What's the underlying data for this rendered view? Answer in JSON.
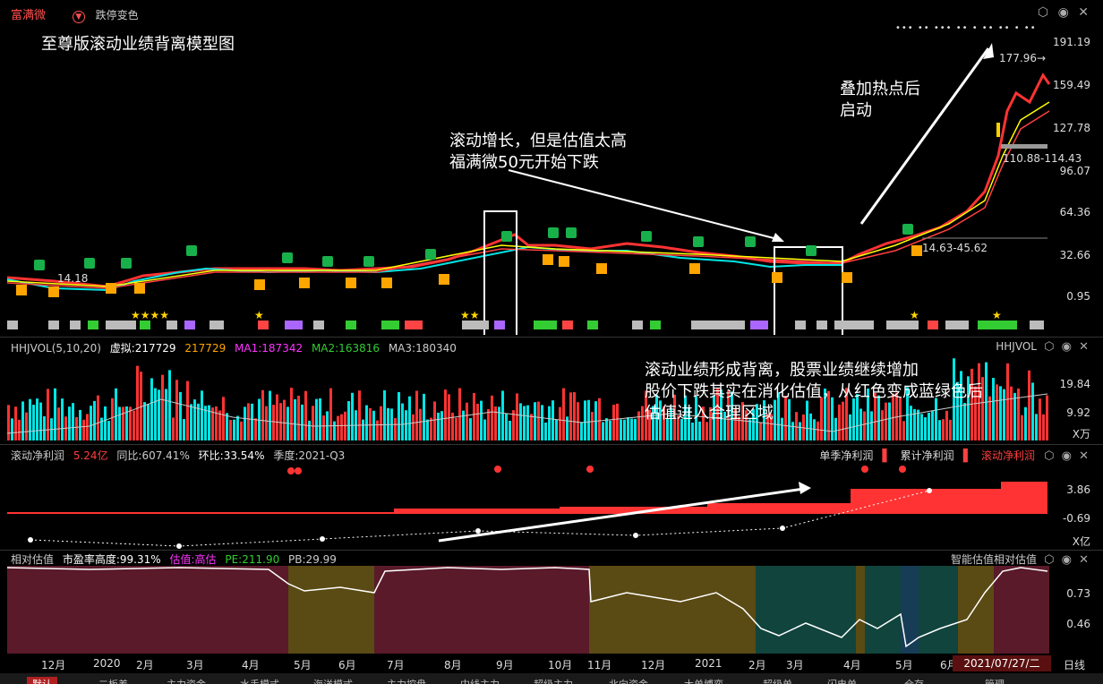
{
  "header": {
    "stock_name": "富满微",
    "tab_label": "跌停变色",
    "right_axis": [
      "191.19",
      "159.49",
      "127.78",
      "96.07",
      "64.36",
      "32.66",
      "0.95"
    ],
    "price_markers": {
      "high": "177.96→",
      "range_high": "110.88-114.43",
      "range_low": "14.63-45.62",
      "low_label": "14.18"
    }
  },
  "annotations": {
    "title": "至尊版滚动业绩背离模型图",
    "a1_line1": "滚动增长，但是估值太高",
    "a1_line2": "福满微50元开始下跌",
    "a2_line1": "叠加热点后",
    "a2_line2": "启动",
    "a3_line1": "滚动业绩形成背离，股票业绩继续增加",
    "a3_line2": "股价下跌其实在消化估值，从红色变成蓝绿色后",
    "a3_line3": "估值进入合理区域"
  },
  "vol": {
    "name": "HHJVOL(5,10,20)",
    "virtual_label": "虚拟:217729",
    "v2": "217729",
    "ma1": "MA1:187342",
    "ma2": "MA2:163816",
    "ma3": "MA3:180340",
    "right_name": "HHJVOL",
    "axis": [
      "19.84",
      "9.92",
      "X万"
    ]
  },
  "profit": {
    "name": "滚动净利润",
    "value": "5.24亿",
    "yoy": "同比:607.41%",
    "qoq": "环比:33.54%",
    "quarter": "季度:2021-Q3",
    "legend1": "单季净利润",
    "legend2": "累计净利润",
    "legend3": "滚动净利润",
    "axis": [
      "3.86",
      "-0.69",
      "X亿"
    ]
  },
  "val": {
    "name": "相对估值",
    "pe_height": "市盈率高度:99.31%",
    "status": "估值:高估",
    "pe": "PE:211.90",
    "pb": "PB:29.99",
    "right_name": "智能估值相对估值",
    "axis": [
      "0.73",
      "0.46"
    ]
  },
  "xaxis": {
    "dates": [
      "12月",
      "2020",
      "2月",
      "3月",
      "4月",
      "5月",
      "6月",
      "7月",
      "8月",
      "9月",
      "10月",
      "11月",
      "12月",
      "2021",
      "2月",
      "3月",
      "4月",
      "5月",
      "6月"
    ],
    "cursor_date": "2021/07/27/二",
    "period": "日线"
  },
  "bottom_tabs": [
    "默认",
    "二板差",
    "主力资金",
    "水手模式",
    "海洋模式",
    "主力控盘",
    "中线主力",
    "超级主力",
    "北向资金",
    "大单博弈",
    "超级单",
    "闪电单",
    "仓存",
    "管理"
  ],
  "colors": {
    "up": "#ff3333",
    "down": "#00e5e5",
    "ma5": "#ffffff",
    "ma10": "#ffff00",
    "ma20": "#ff4040"
  }
}
